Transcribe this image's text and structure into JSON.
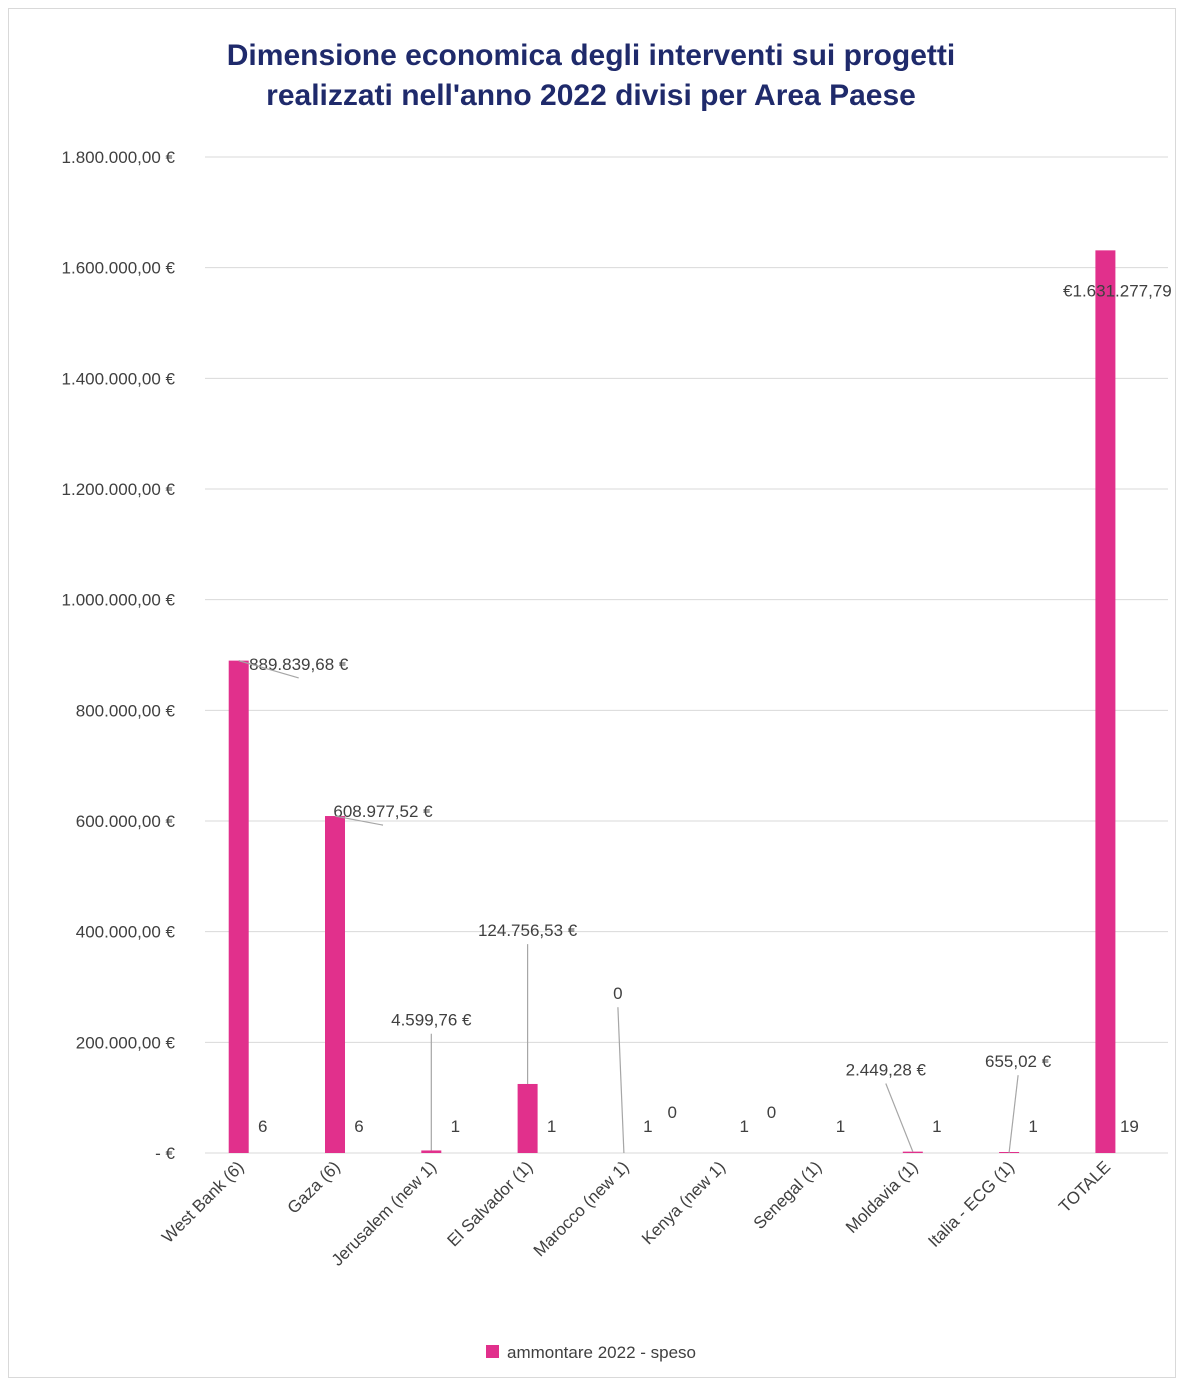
{
  "chart_data": {
    "type": "bar",
    "title": [
      "Dimensione economica degli interventi sui progetti",
      "realizzati nell'anno 2022 divisi per Area Paese"
    ],
    "categories": [
      "West Bank (6)",
      "Gaza (6)",
      "Jerusalem (new 1)",
      "El Salvador  (1)",
      "Marocco (new 1)",
      "Kenya (new 1)",
      "Senegal (1)",
      "Moldavia (1)",
      "Italia - ECG (1)",
      "TOTALE"
    ],
    "series": [
      {
        "name": "ammontare 2022 - speso",
        "color": "#e1308c",
        "values": [
          889839.68,
          608977.52,
          4599.76,
          124756.53,
          0,
          0,
          0,
          2449.28,
          655.02,
          1631277.79
        ],
        "data_labels": [
          "889.839,68 €",
          "608.977,52 €",
          "4.599,76 €",
          "124.756,53 €",
          "0",
          "0",
          "0",
          "2.449,28 €",
          "655,02 €",
          "€1.631.277,79"
        ]
      }
    ],
    "project_counts": [
      "6",
      "6",
      "1",
      "1",
      "1",
      "1",
      "1",
      "1",
      "1",
      "19"
    ],
    "ylim": [
      0,
      1800000
    ],
    "yticks": [
      0,
      200000,
      400000,
      600000,
      800000,
      1000000,
      1200000,
      1400000,
      1600000,
      1800000
    ],
    "ytick_labels": [
      " -  € ",
      "200.000,00 €",
      "400.000,00 €",
      "600.000,00 €",
      "800.000,00 €",
      "1.000.000,00 €",
      "1.200.000,00 €",
      "1.400.000,00 €",
      "1.600.000,00 €",
      "1.800.000,00 €"
    ],
    "grid": true,
    "legend_position": "bottom",
    "colors": {
      "bar": "#e1308c",
      "title": "#1f2a6b",
      "grid": "#d9d9d9",
      "text": "#404040",
      "leader": "#a6a6a6"
    }
  }
}
